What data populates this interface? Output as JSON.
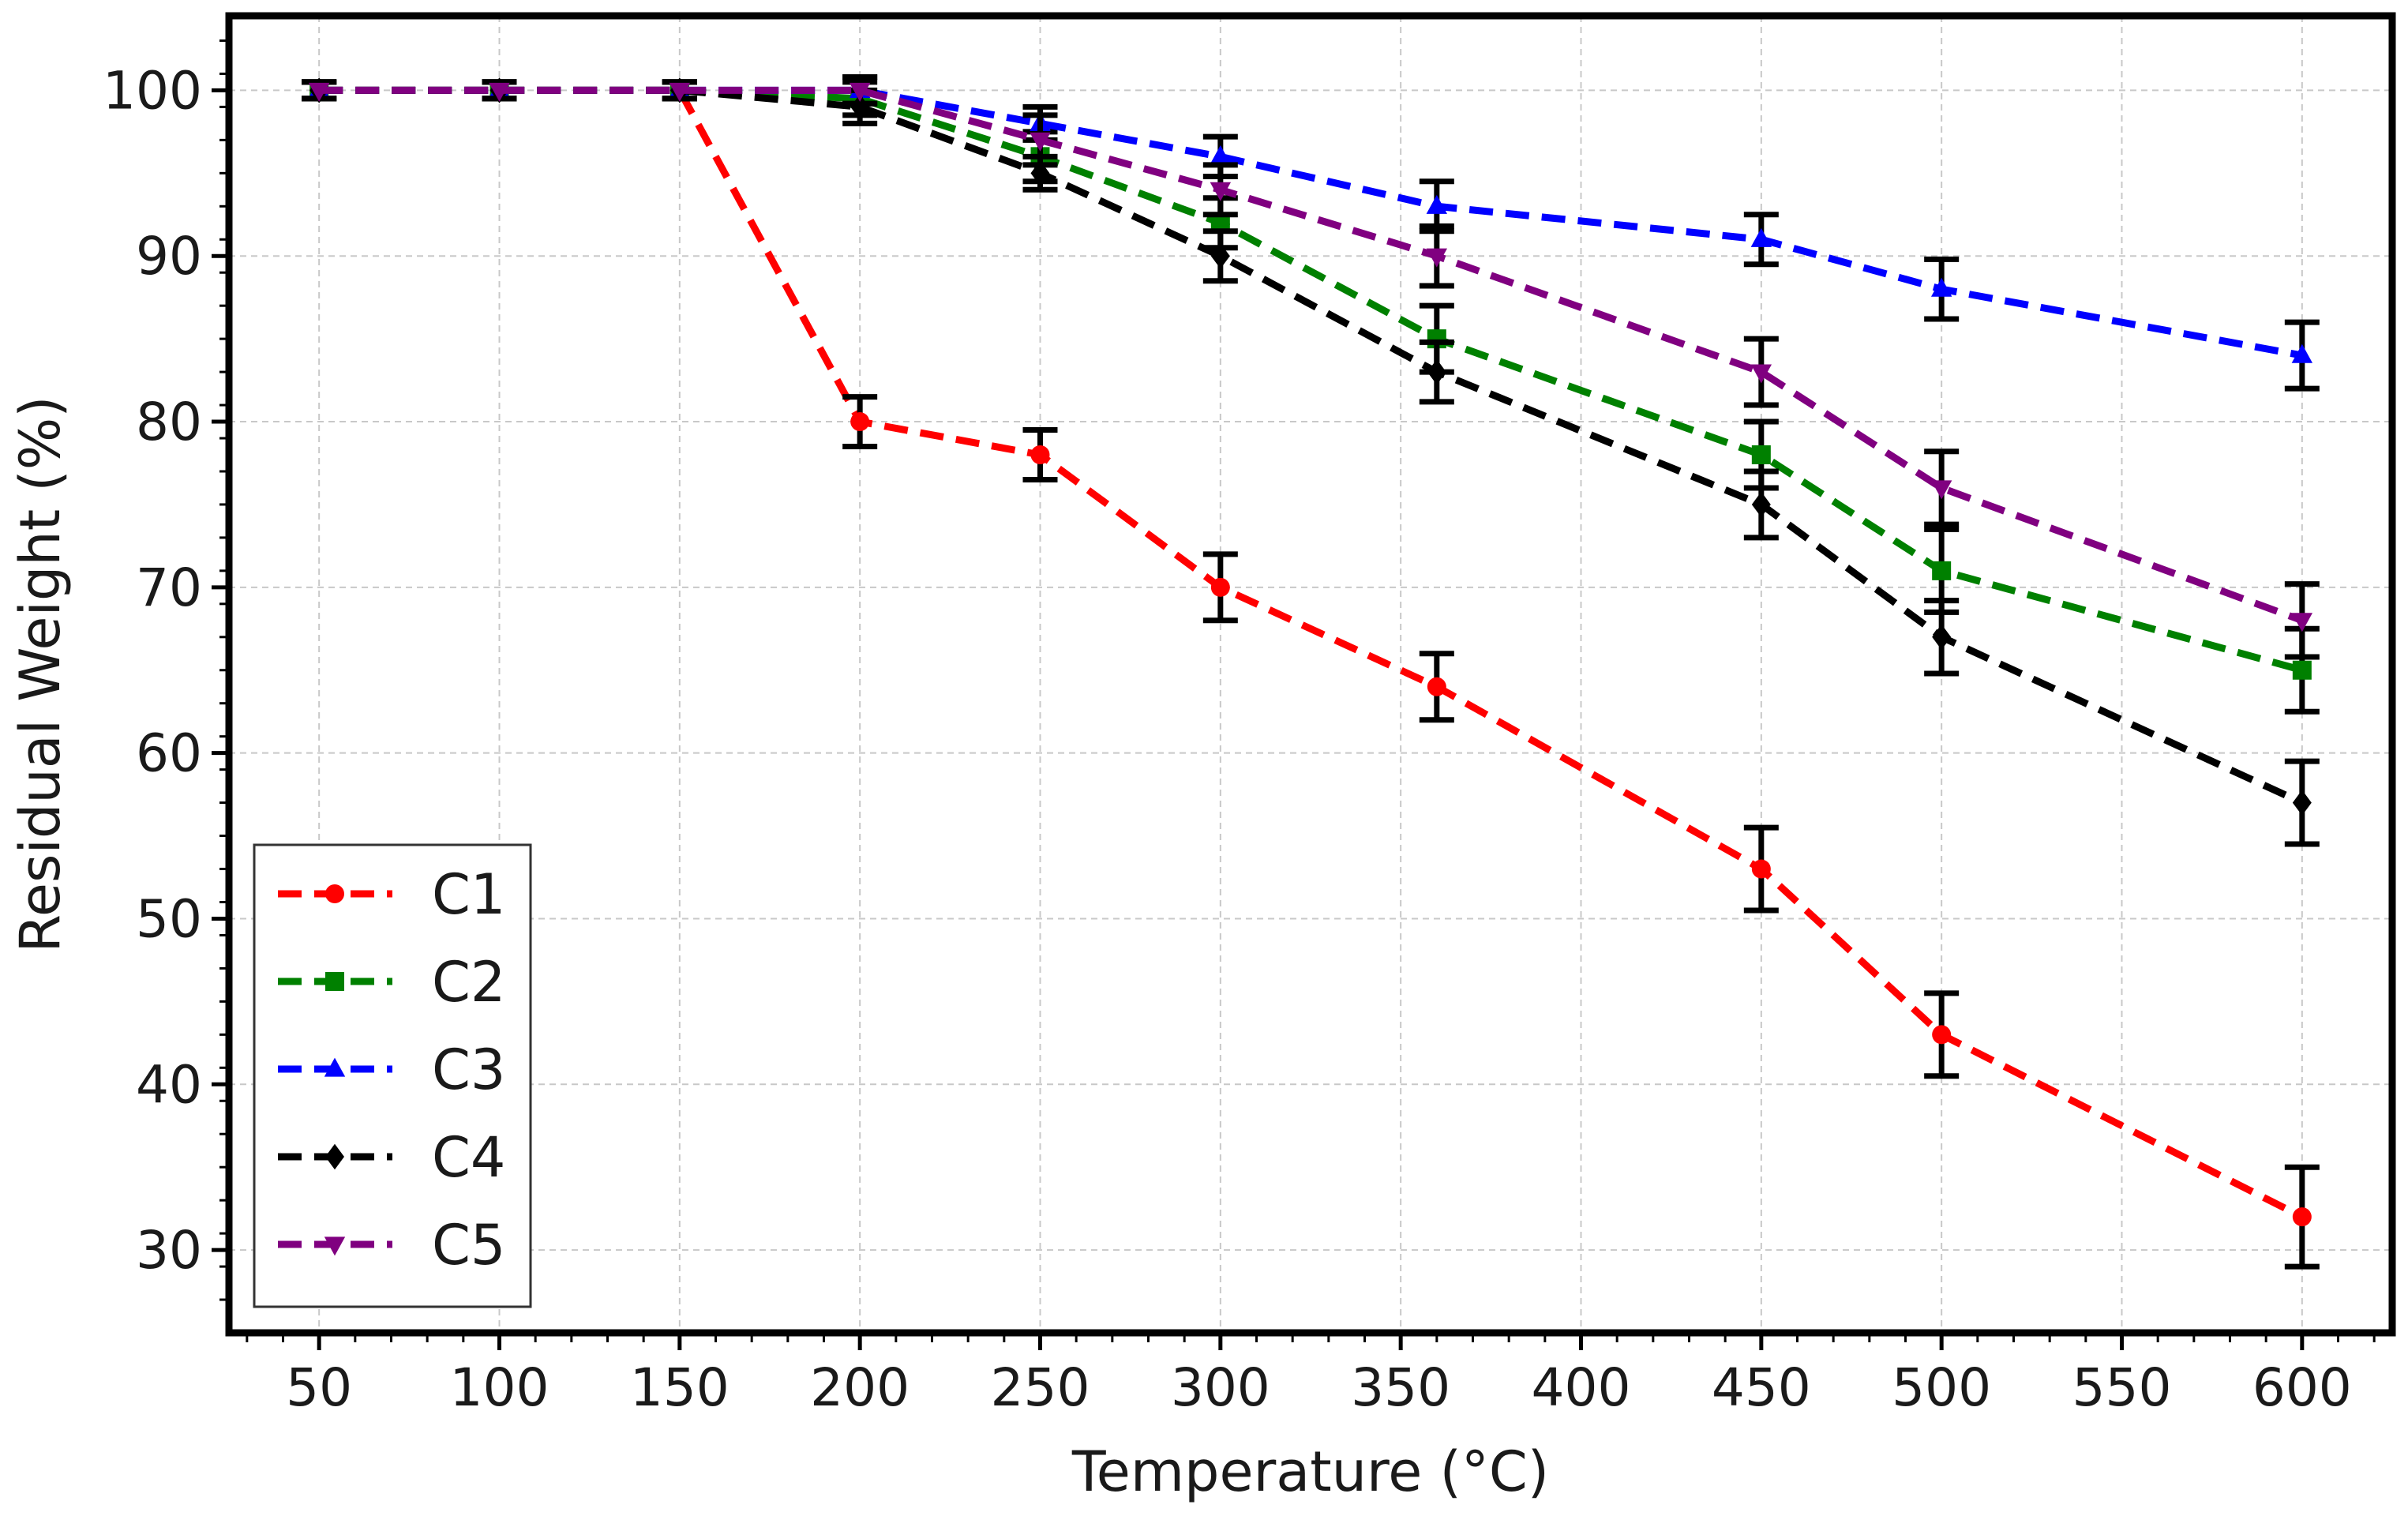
{
  "chart_data": {
    "type": "line",
    "xlabel": "Temperature (°C)",
    "ylabel": "Residual Weight (%)",
    "xlim": [
      25,
      625
    ],
    "ylim": [
      25,
      104.5
    ],
    "xticks": [
      50,
      100,
      150,
      200,
      250,
      300,
      350,
      400,
      450,
      500,
      550,
      600
    ],
    "yticks": [
      30,
      40,
      50,
      60,
      70,
      80,
      90,
      100
    ],
    "grid": true,
    "legend_position": "bottom-left",
    "x": [
      50,
      100,
      150,
      200,
      250,
      300,
      360,
      450,
      500,
      600
    ],
    "series": [
      {
        "name": "C1",
        "color": "#ff0000",
        "marker": "circle",
        "values": [
          100,
          100,
          100,
          80,
          78,
          70,
          64,
          53,
          43,
          32
        ],
        "errors": [
          0.5,
          0.5,
          0.5,
          1.5,
          1.5,
          2.0,
          2.0,
          2.5,
          2.5,
          3.0
        ]
      },
      {
        "name": "C2",
        "color": "#008000",
        "marker": "square",
        "values": [
          100,
          100,
          100,
          99.5,
          96,
          92,
          85,
          78,
          71,
          65
        ],
        "errors": [
          0.5,
          0.5,
          0.5,
          1.0,
          1.5,
          1.5,
          2.0,
          2.0,
          2.5,
          2.5
        ]
      },
      {
        "name": "C3",
        "color": "#0000ff",
        "marker": "triangle-up",
        "values": [
          100,
          100,
          100,
          100,
          98,
          96,
          93,
          91,
          88,
          84
        ],
        "errors": [
          0.5,
          0.5,
          0.5,
          0.8,
          1.0,
          1.2,
          1.5,
          1.5,
          1.8,
          2.0
        ]
      },
      {
        "name": "C4",
        "color": "#000000",
        "marker": "diamond",
        "values": [
          100,
          100,
          100,
          99,
          95,
          90,
          83,
          75,
          67,
          57
        ],
        "errors": [
          0.5,
          0.5,
          0.5,
          1.0,
          1.0,
          1.5,
          1.8,
          2.0,
          2.2,
          2.5
        ]
      },
      {
        "name": "C5",
        "color": "#800080",
        "marker": "triangle-down",
        "values": [
          100,
          100,
          100,
          100,
          97,
          94,
          90,
          83,
          76,
          68
        ],
        "errors": [
          0.5,
          0.5,
          0.5,
          0.8,
          1.5,
          1.5,
          1.8,
          2.0,
          2.2,
          2.2
        ]
      }
    ]
  }
}
